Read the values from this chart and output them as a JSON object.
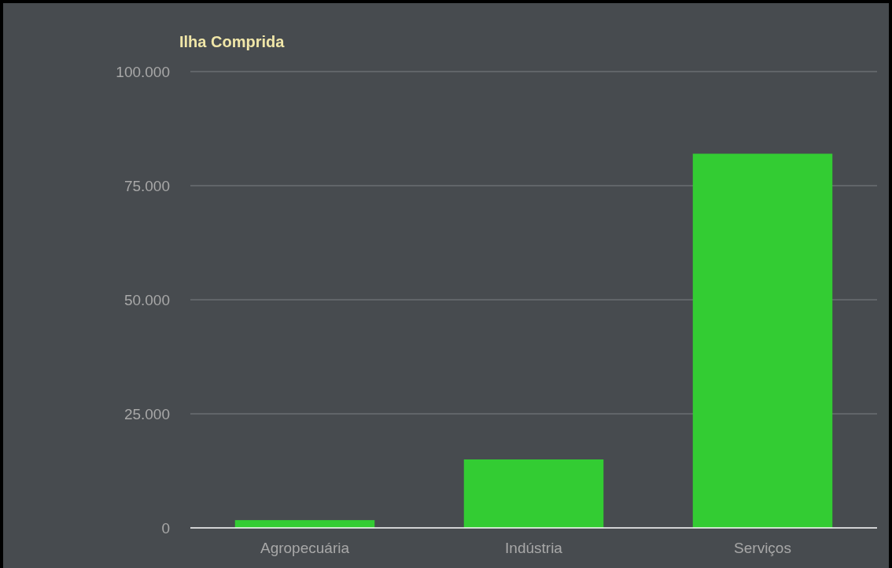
{
  "chart_data": {
    "type": "bar",
    "title": "Ilha Comprida",
    "categories": [
      "Agropecuária",
      "Indústria",
      "Serviços"
    ],
    "values": [
      1700,
      15000,
      82000
    ],
    "color": "#33cc33",
    "ylim": [
      0,
      100000
    ],
    "yticks": [
      {
        "value": 0,
        "label": "0"
      },
      {
        "value": 25000,
        "label": "25.000"
      },
      {
        "value": 50000,
        "label": "50.000"
      },
      {
        "value": 75000,
        "label": "75.000"
      },
      {
        "value": 100000,
        "label": "100.000"
      }
    ],
    "grid": "y"
  }
}
